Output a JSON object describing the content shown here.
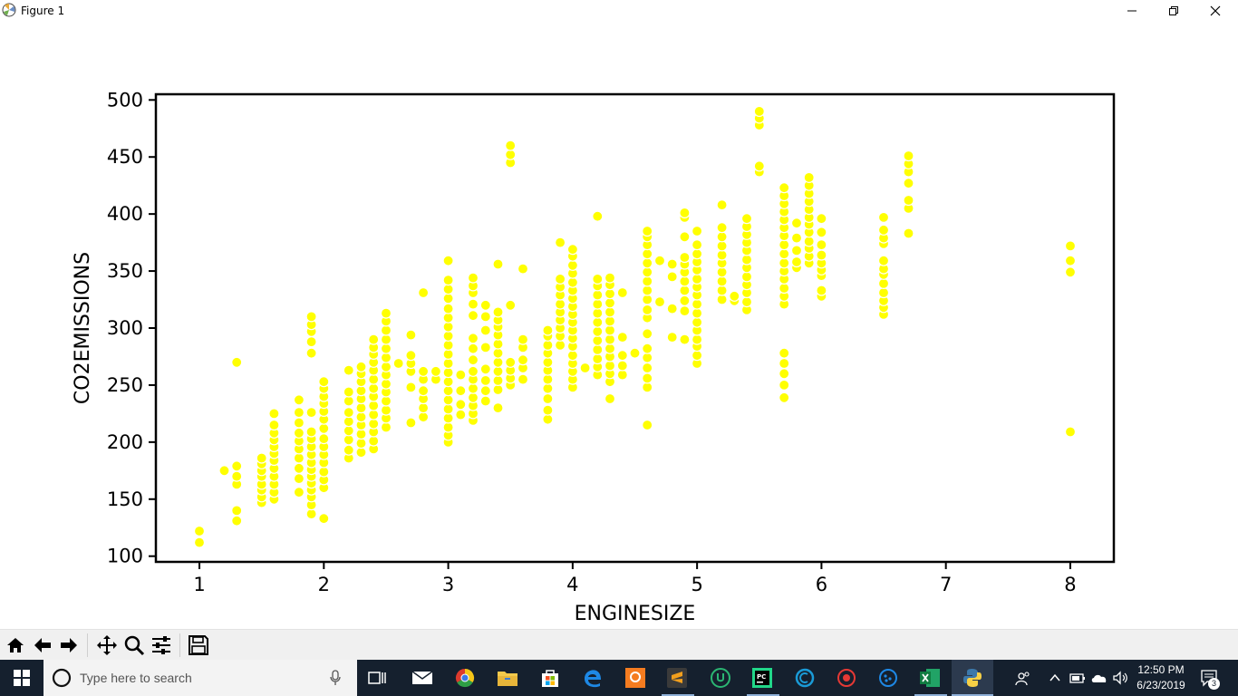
{
  "window": {
    "title": "Figure 1"
  },
  "toolbar": {
    "buttons": [
      {
        "name": "home-icon"
      },
      {
        "name": "back-icon"
      },
      {
        "name": "forward-icon"
      },
      {
        "name": "pan-icon"
      },
      {
        "name": "zoom-icon"
      },
      {
        "name": "configure-subplots-icon"
      },
      {
        "name": "save-icon"
      }
    ]
  },
  "taskbar": {
    "search_placeholder": "Type here to search",
    "time": "12:50 PM",
    "date": "6/23/2019",
    "notification_count": "3",
    "apps": [
      "task-view-icon",
      "mail-icon",
      "chrome-icon",
      "file-explorer-icon",
      "store-icon",
      "edge-icon",
      "app-icon",
      "sublime-icon",
      "upwork-icon",
      "pycharm-icon",
      "ccleaner-icon",
      "app-icon",
      "app-icon",
      "excel-icon",
      "python-icon"
    ]
  },
  "chart_data": {
    "type": "scatter",
    "xlabel": "ENGINESIZE",
    "ylabel": "CO2EMISSIONS",
    "xlim": [
      0.65,
      8.35
    ],
    "ylim": [
      95,
      505
    ],
    "xticks": [
      1,
      2,
      3,
      4,
      5,
      6,
      7,
      8
    ],
    "yticks": [
      100,
      150,
      200,
      250,
      300,
      350,
      400,
      450,
      500
    ],
    "marker_color": "#ffff00",
    "grid": false,
    "points_by_engine": [
      {
        "x": 1.0,
        "y": [
          112,
          122
        ]
      },
      {
        "x": 1.2,
        "y": [
          175
        ]
      },
      {
        "x": 1.3,
        "y": [
          131,
          140,
          163,
          170,
          179,
          270
        ]
      },
      {
        "x": 1.5,
        "y": [
          147,
          152,
          158,
          163,
          170,
          175,
          181,
          186
        ]
      },
      {
        "x": 1.6,
        "y": [
          150,
          156,
          163,
          170,
          177,
          184,
          190,
          196,
          202,
          208,
          215,
          225
        ]
      },
      {
        "x": 1.8,
        "y": [
          156,
          168,
          177,
          186,
          194,
          201,
          208,
          217,
          226,
          237
        ]
      },
      {
        "x": 1.9,
        "y": [
          137,
          145,
          152,
          158,
          164,
          170,
          176,
          182,
          189,
          196,
          203,
          209,
          226,
          278,
          288,
          297,
          303,
          310
        ]
      },
      {
        "x": 2.0,
        "y": [
          133,
          160,
          167,
          174,
          182,
          189,
          196,
          203,
          212,
          220,
          227,
          234,
          240,
          247,
          253
        ]
      },
      {
        "x": 2.2,
        "y": [
          186,
          193,
          202,
          210,
          218,
          226,
          236,
          244,
          263
        ]
      },
      {
        "x": 2.3,
        "y": [
          191,
          199,
          207,
          215,
          222,
          230,
          238,
          245,
          253,
          260,
          266
        ]
      },
      {
        "x": 2.4,
        "y": [
          194,
          201,
          209,
          216,
          224,
          232,
          240,
          247,
          255,
          263,
          270,
          277,
          283,
          290
        ]
      },
      {
        "x": 2.5,
        "y": [
          213,
          221,
          228,
          236,
          244,
          251,
          259,
          266,
          274,
          282,
          290,
          298,
          306,
          313
        ]
      },
      {
        "x": 2.6,
        "y": [
          269
        ]
      },
      {
        "x": 2.7,
        "y": [
          217,
          248,
          262,
          269,
          276,
          294
        ]
      },
      {
        "x": 2.8,
        "y": [
          222,
          230,
          238,
          245,
          255,
          262,
          331
        ]
      },
      {
        "x": 2.9,
        "y": [
          255,
          262
        ]
      },
      {
        "x": 3.0,
        "y": [
          200,
          206,
          213,
          221,
          229,
          237,
          245,
          253,
          261,
          269,
          277,
          285,
          293,
          301,
          309,
          317,
          326,
          334,
          342,
          359
        ]
      },
      {
        "x": 3.1,
        "y": [
          224,
          233,
          245,
          259
        ]
      },
      {
        "x": 3.2,
        "y": [
          219,
          225,
          232,
          239,
          247,
          255,
          262,
          272,
          282,
          291,
          311,
          321,
          331,
          337,
          344
        ]
      },
      {
        "x": 3.3,
        "y": [
          236,
          245,
          254,
          264,
          283,
          298,
          310,
          320
        ]
      },
      {
        "x": 3.4,
        "y": [
          230,
          246,
          254,
          262,
          270,
          278,
          286,
          294,
          301,
          307,
          314,
          356
        ]
      },
      {
        "x": 3.5,
        "y": [
          250,
          256,
          263,
          270,
          320,
          445,
          452,
          460
        ]
      },
      {
        "x": 3.6,
        "y": [
          255,
          265,
          272,
          283,
          290,
          352
        ]
      },
      {
        "x": 3.8,
        "y": [
          220,
          228,
          238,
          247,
          255,
          263,
          270,
          278,
          285,
          293,
          298
        ]
      },
      {
        "x": 3.9,
        "y": [
          285,
          293,
          300,
          307,
          314,
          321,
          329,
          336,
          343,
          375
        ]
      },
      {
        "x": 4.0,
        "y": [
          248,
          255,
          262,
          269,
          276,
          284,
          291,
          298,
          305,
          312,
          319,
          326,
          333,
          340,
          348,
          355,
          363,
          369
        ]
      },
      {
        "x": 4.1,
        "y": [
          265
        ]
      },
      {
        "x": 4.2,
        "y": [
          259,
          266,
          273,
          281,
          289,
          297,
          305,
          313,
          321,
          329,
          337,
          343,
          398
        ]
      },
      {
        "x": 4.3,
        "y": [
          238,
          253,
          260,
          267,
          275,
          282,
          290,
          298,
          306,
          314,
          322,
          330,
          338,
          344
        ]
      },
      {
        "x": 4.4,
        "y": [
          259,
          267,
          276,
          292,
          331
        ]
      },
      {
        "x": 4.5,
        "y": [
          278
        ]
      },
      {
        "x": 4.6,
        "y": [
          215,
          248,
          256,
          265,
          274,
          282,
          295,
          309,
          316,
          325,
          333,
          341,
          349,
          357,
          365,
          373,
          380,
          385
        ]
      },
      {
        "x": 4.7,
        "y": [
          323,
          359
        ]
      },
      {
        "x": 4.8,
        "y": [
          292,
          317,
          345,
          356
        ]
      },
      {
        "x": 4.9,
        "y": [
          290,
          315,
          324,
          333,
          341,
          349,
          356,
          362,
          380,
          397,
          401
        ]
      },
      {
        "x": 5.0,
        "y": [
          269,
          276,
          284,
          290,
          298,
          305,
          313,
          321,
          329,
          336,
          343,
          351,
          358,
          365,
          373,
          385
        ]
      },
      {
        "x": 5.2,
        "y": [
          325,
          333,
          341,
          349,
          357,
          364,
          372,
          380,
          388,
          408
        ]
      },
      {
        "x": 5.3,
        "y": [
          324,
          328
        ]
      },
      {
        "x": 5.4,
        "y": [
          316,
          323,
          331,
          338,
          345,
          353,
          360,
          368,
          375,
          382,
          389,
          396
        ]
      },
      {
        "x": 5.5,
        "y": [
          437,
          442,
          478,
          484,
          490
        ]
      },
      {
        "x": 5.7,
        "y": [
          239,
          250,
          260,
          269,
          278,
          321,
          328,
          335,
          343,
          350,
          357,
          365,
          373,
          381,
          388,
          395,
          402,
          409,
          416,
          423
        ]
      },
      {
        "x": 5.8,
        "y": [
          353,
          358,
          368,
          379,
          392
        ]
      },
      {
        "x": 5.9,
        "y": [
          357,
          363,
          370,
          376,
          384,
          391,
          397,
          404,
          411,
          418,
          425,
          432
        ]
      },
      {
        "x": 6.0,
        "y": [
          328,
          333,
          346,
          351,
          357,
          364,
          373,
          384,
          396
        ]
      },
      {
        "x": 6.5,
        "y": [
          312,
          318,
          324,
          331,
          339,
          347,
          352,
          359,
          374,
          379,
          386,
          397
        ]
      },
      {
        "x": 6.7,
        "y": [
          383,
          405,
          412,
          427,
          437,
          444,
          451
        ]
      },
      {
        "x": 8.0,
        "y": [
          209,
          349,
          359,
          372
        ]
      }
    ]
  }
}
